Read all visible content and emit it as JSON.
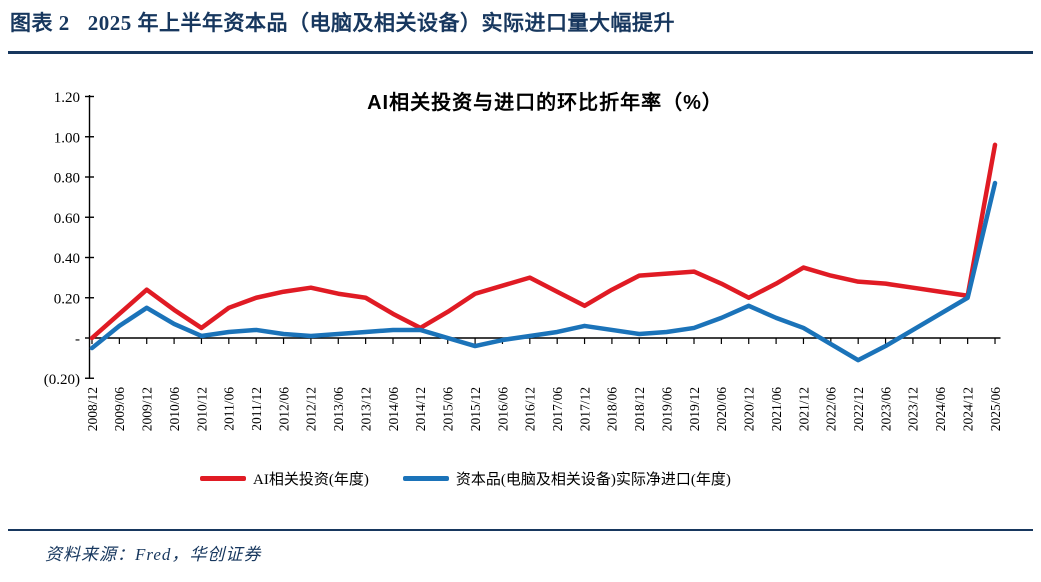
{
  "header": {
    "figure_label": "图表 2",
    "figure_title": "2025 年上半年资本品（电脑及相关设备）实际进口量大幅提升"
  },
  "footer": {
    "source": "资料来源：Fred，华创证券"
  },
  "colors": {
    "title_navy": "#17375E",
    "series_red": "#E01B24",
    "series_blue": "#1B73B9",
    "axis_black": "#000000"
  },
  "chart_data": {
    "type": "line",
    "title": "AI相关投资与进口的环比折年率（%）",
    "xlabel": "",
    "ylabel": "",
    "ylim": [
      -0.2,
      1.2
    ],
    "grid": false,
    "legend_position": "bottom",
    "x_labels_rotated_90": true,
    "y_ticks": [
      {
        "label": "1.20",
        "value": 1.2
      },
      {
        "label": "1.00",
        "value": 1.0
      },
      {
        "label": "0.80",
        "value": 0.8
      },
      {
        "label": "0.60",
        "value": 0.6
      },
      {
        "label": "0.40",
        "value": 0.4
      },
      {
        "label": "0.20",
        "value": 0.2
      },
      {
        "label": "-",
        "value": 0.0
      },
      {
        "label": "(0.20)",
        "value": -0.2
      }
    ],
    "categories": [
      "2008/12",
      "2009/06",
      "2009/12",
      "2010/06",
      "2010/12",
      "2011/06",
      "2011/12",
      "2012/06",
      "2012/12",
      "2013/06",
      "2013/12",
      "2014/06",
      "2014/12",
      "2015/06",
      "2015/12",
      "2016/06",
      "2016/12",
      "2017/06",
      "2017/12",
      "2018/06",
      "2018/12",
      "2019/06",
      "2019/12",
      "2020/06",
      "2020/12",
      "2021/06",
      "2021/12",
      "2022/06",
      "2022/12",
      "2023/06",
      "2023/12",
      "2024/06",
      "2024/12",
      "2025/06"
    ],
    "series": [
      {
        "name": "AI相关投资(年度)",
        "color": "#E01B24",
        "values": [
          0.0,
          0.12,
          0.24,
          0.14,
          0.05,
          0.15,
          0.2,
          0.23,
          0.25,
          0.22,
          0.2,
          0.12,
          0.05,
          0.13,
          0.22,
          0.26,
          0.3,
          0.23,
          0.16,
          0.24,
          0.31,
          0.32,
          0.33,
          0.27,
          0.2,
          0.27,
          0.35,
          0.31,
          0.28,
          0.27,
          0.25,
          0.23,
          0.21,
          0.96
        ]
      },
      {
        "name": "资本品(电脑及相关设备)实际净进口(年度)",
        "color": "#1B73B9",
        "values": [
          -0.05,
          0.06,
          0.15,
          0.07,
          0.01,
          0.03,
          0.04,
          0.02,
          0.01,
          0.02,
          0.03,
          0.04,
          0.04,
          0.0,
          -0.04,
          -0.01,
          0.01,
          0.03,
          0.06,
          0.04,
          0.02,
          0.03,
          0.05,
          0.1,
          0.16,
          0.1,
          0.05,
          -0.03,
          -0.11,
          -0.04,
          0.04,
          0.12,
          0.2,
          0.77
        ]
      }
    ]
  }
}
